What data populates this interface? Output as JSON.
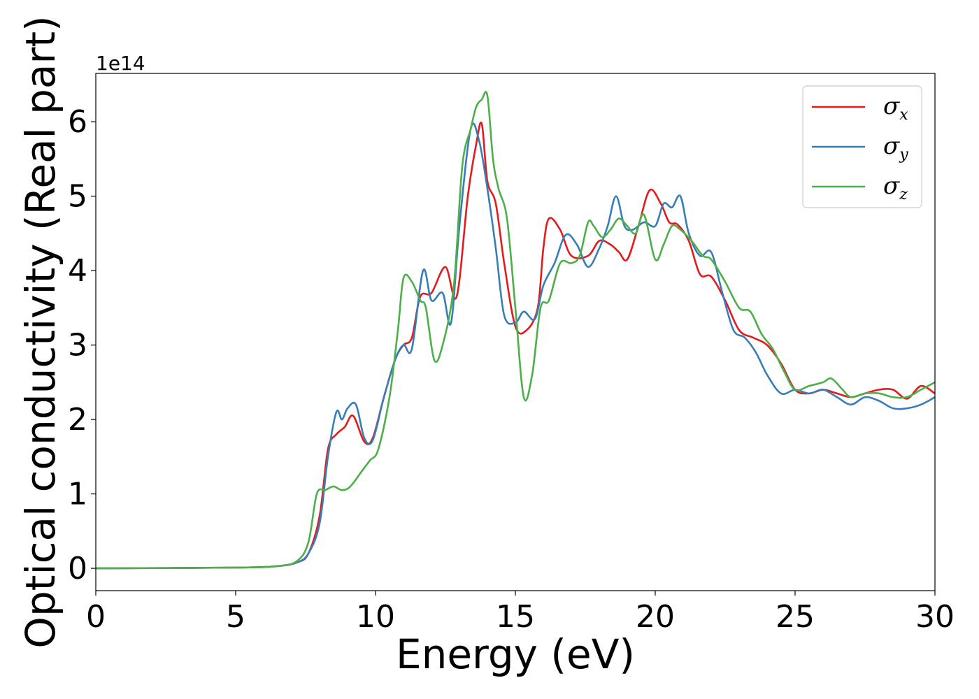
{
  "chart_data": {
    "type": "line",
    "xlabel": "Energy (eV)",
    "ylabel": "Optical conductivity (Real part)",
    "y_offset_label": "1e14",
    "xlim": [
      0,
      30
    ],
    "ylim": [
      -0.3,
      6.65
    ],
    "xticks": [
      "0",
      "5",
      "10",
      "15",
      "20",
      "25",
      "30"
    ],
    "yticks": [
      "0",
      "1",
      "2",
      "3",
      "4",
      "5",
      "6"
    ],
    "grid": false,
    "legend_position": "top-right",
    "series": [
      {
        "name": "σ",
        "subscript": "x",
        "color": "#e41a1c",
        "x": [
          0,
          5,
          6.5,
          7.2,
          7.6,
          8.0,
          8.3,
          8.6,
          8.9,
          9.2,
          9.6,
          9.9,
          10.3,
          10.7,
          11.0,
          11.3,
          11.6,
          12.0,
          12.5,
          12.9,
          13.3,
          13.6,
          13.8,
          14.0,
          14.3,
          14.6,
          15.0,
          15.4,
          15.8,
          16.0,
          16.2,
          16.6,
          17.0,
          17.6,
          18.0,
          18.4,
          18.7,
          19.0,
          19.4,
          19.8,
          20.2,
          20.5,
          20.8,
          21.2,
          21.6,
          22.0,
          22.5,
          23.0,
          23.5,
          24.0,
          24.5,
          25.0,
          25.5,
          26.0,
          26.5,
          27.0,
          27.5,
          28.0,
          28.5,
          29.0,
          29.5,
          30.0
        ],
        "y": [
          0,
          0.01,
          0.03,
          0.08,
          0.2,
          0.7,
          1.6,
          1.8,
          1.9,
          2.05,
          1.7,
          1.75,
          2.3,
          2.8,
          3.0,
          3.1,
          3.65,
          3.7,
          4.05,
          3.65,
          5.0,
          5.7,
          5.97,
          5.2,
          4.9,
          4.1,
          3.25,
          3.2,
          3.5,
          4.3,
          4.7,
          4.55,
          4.2,
          4.2,
          4.4,
          4.35,
          4.25,
          4.15,
          4.6,
          5.08,
          4.9,
          4.65,
          4.62,
          4.4,
          3.95,
          3.92,
          3.6,
          3.2,
          3.1,
          3.0,
          2.75,
          2.4,
          2.35,
          2.4,
          2.35,
          2.3,
          2.35,
          2.4,
          2.4,
          2.28,
          2.45,
          2.35
        ]
      },
      {
        "name": "σ",
        "subscript": "y",
        "color": "#377eb8",
        "x": [
          0,
          5,
          6.5,
          7.2,
          7.6,
          8.0,
          8.3,
          8.6,
          8.8,
          9.0,
          9.3,
          9.6,
          9.9,
          10.3,
          10.7,
          11.0,
          11.3,
          11.7,
          12.0,
          12.4,
          12.7,
          13.0,
          13.4,
          13.7,
          14.0,
          14.3,
          14.6,
          15.0,
          15.3,
          15.7,
          16.0,
          16.4,
          16.8,
          17.2,
          17.6,
          18.0,
          18.3,
          18.6,
          18.9,
          19.2,
          19.6,
          20.0,
          20.3,
          20.6,
          20.9,
          21.2,
          21.6,
          22.0,
          22.4,
          22.8,
          23.2,
          23.6,
          24.0,
          24.5,
          25.0,
          25.5,
          26.0,
          26.5,
          27.0,
          27.5,
          28.0,
          28.5,
          29.0,
          29.5,
          30.0
        ],
        "y": [
          0,
          0.01,
          0.03,
          0.08,
          0.2,
          0.6,
          1.5,
          2.1,
          2.0,
          2.15,
          2.2,
          1.75,
          1.72,
          2.3,
          2.8,
          3.0,
          2.95,
          4.0,
          3.6,
          3.7,
          3.3,
          4.6,
          5.9,
          5.75,
          5.1,
          4.3,
          3.4,
          3.3,
          3.45,
          3.35,
          3.8,
          4.1,
          4.48,
          4.35,
          4.05,
          4.3,
          4.6,
          5.0,
          4.6,
          4.55,
          4.65,
          4.6,
          4.9,
          4.85,
          5.0,
          4.5,
          4.2,
          4.25,
          3.7,
          3.2,
          3.1,
          2.9,
          2.6,
          2.35,
          2.4,
          2.35,
          2.4,
          2.3,
          2.2,
          2.3,
          2.25,
          2.15,
          2.15,
          2.2,
          2.3
        ]
      },
      {
        "name": "σ",
        "subscript": "z",
        "color": "#4daf4a",
        "x": [
          0,
          5,
          6.5,
          7.2,
          7.6,
          7.9,
          8.2,
          8.5,
          8.8,
          9.1,
          9.5,
          9.8,
          10.1,
          10.5,
          10.8,
          11.0,
          11.3,
          11.6,
          11.8,
          12.1,
          12.4,
          12.8,
          13.1,
          13.4,
          13.6,
          13.8,
          14.0,
          14.2,
          14.4,
          14.7,
          15.0,
          15.3,
          15.6,
          15.9,
          16.2,
          16.6,
          17.0,
          17.3,
          17.6,
          17.8,
          18.1,
          18.4,
          18.7,
          19.0,
          19.3,
          19.6,
          20.0,
          20.3,
          20.6,
          20.9,
          21.3,
          21.7,
          22.0,
          22.5,
          23.0,
          23.4,
          23.8,
          24.2,
          24.6,
          25.0,
          25.5,
          26.0,
          26.3,
          26.7,
          27.0,
          27.5,
          28.0,
          28.5,
          29.0,
          29.5,
          30.0
        ],
        "y": [
          0,
          0.01,
          0.03,
          0.1,
          0.35,
          1.0,
          1.05,
          1.1,
          1.05,
          1.1,
          1.3,
          1.45,
          1.6,
          2.3,
          3.2,
          3.9,
          3.85,
          3.6,
          3.5,
          2.8,
          3.0,
          3.8,
          5.4,
          5.9,
          6.2,
          6.3,
          6.35,
          5.5,
          5.1,
          4.7,
          3.5,
          2.3,
          2.6,
          3.5,
          3.6,
          4.1,
          4.1,
          4.2,
          4.65,
          4.6,
          4.45,
          4.55,
          4.7,
          4.6,
          4.5,
          4.75,
          4.15,
          4.35,
          4.6,
          4.55,
          4.4,
          4.2,
          4.15,
          3.85,
          3.5,
          3.45,
          3.15,
          2.95,
          2.65,
          2.4,
          2.45,
          2.5,
          2.55,
          2.4,
          2.3,
          2.35,
          2.35,
          2.3,
          2.3,
          2.4,
          2.5
        ]
      }
    ]
  }
}
